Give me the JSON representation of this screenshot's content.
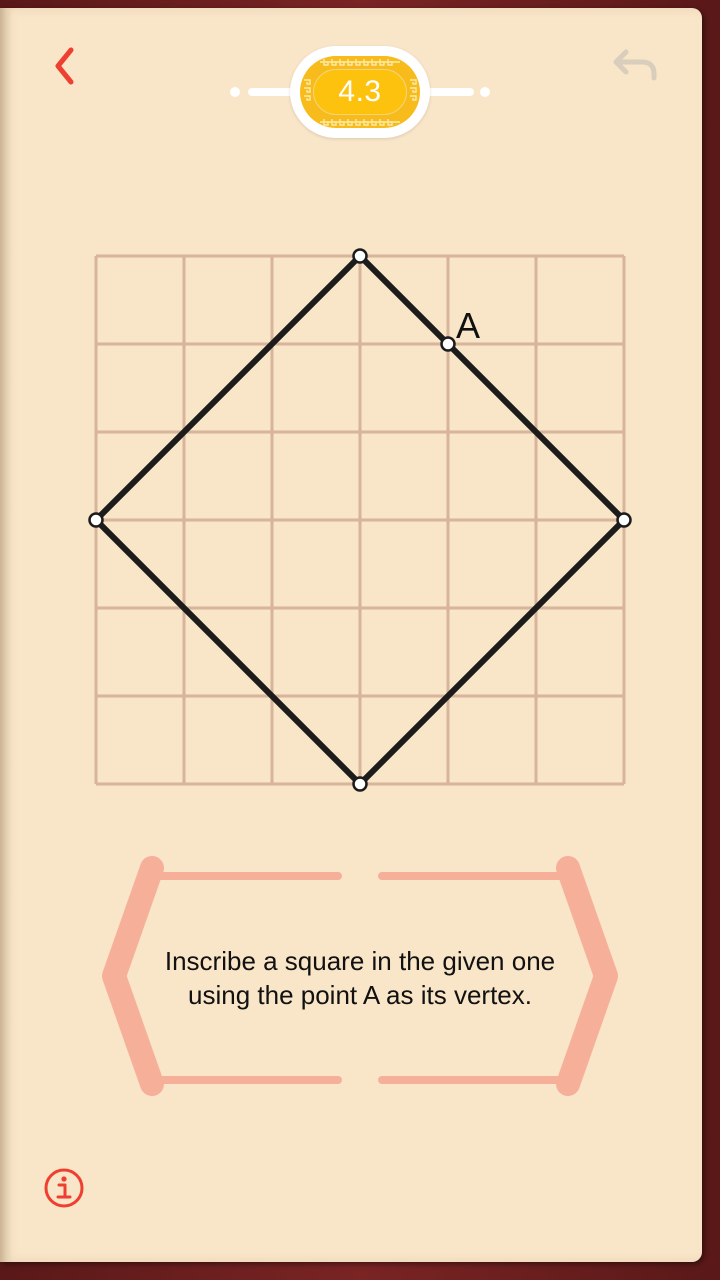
{
  "header": {
    "level": "4.3",
    "back_icon": "chevron-left-icon",
    "undo_icon": "undo-icon",
    "level_dots": 2
  },
  "puzzle": {
    "grid": {
      "columns": 6,
      "rows": 6
    },
    "shape": "square",
    "point_label": "A",
    "vertices": [
      [
        3,
        0
      ],
      [
        6,
        3
      ],
      [
        3,
        6
      ],
      [
        0,
        3
      ]
    ],
    "point_a": [
      4,
      1
    ],
    "colors": {
      "grid_line": "#d8b49a",
      "edge": "#1c1c1c",
      "node_fill": "#ffffff"
    }
  },
  "instruction": {
    "line1": "Inscribe a square in the given one",
    "line2": "using the point A as its vertex."
  },
  "footer": {
    "info_icon": "info-icon"
  },
  "colors": {
    "accent": "#ef3f31",
    "page": "#f9e5c8",
    "bracket": "#f6b09a",
    "badge": "#fcc20d",
    "undo_disabled": "#d9cdbb"
  }
}
